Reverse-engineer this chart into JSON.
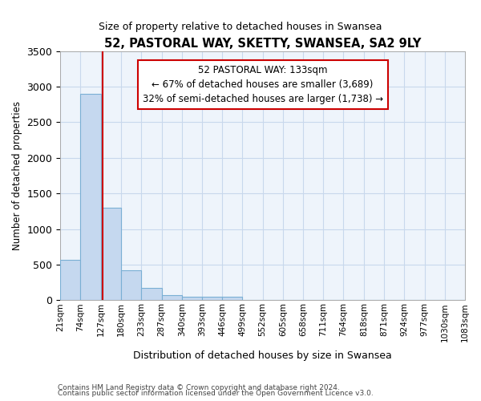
{
  "title": "52, PASTORAL WAY, SKETTY, SWANSEA, SA2 9LY",
  "subtitle": "Size of property relative to detached houses in Swansea",
  "xlabel": "Distribution of detached houses by size in Swansea",
  "ylabel": "Number of detached properties",
  "footer1": "Contains HM Land Registry data © Crown copyright and database right 2024.",
  "footer2": "Contains public sector information licensed under the Open Government Licence v3.0.",
  "bin_edges": [
    21,
    74,
    127,
    180,
    233,
    287,
    340,
    393,
    446,
    499,
    552,
    605,
    658,
    711,
    764,
    818,
    871,
    924,
    977,
    1030,
    1083
  ],
  "bar_heights": [
    570,
    2900,
    1300,
    420,
    170,
    70,
    50,
    50,
    50,
    0,
    0,
    0,
    0,
    0,
    0,
    0,
    0,
    0,
    0,
    0
  ],
  "bar_color": "#c5d8ef",
  "bar_edge_color": "#7aafd4",
  "grid_color": "#c8d8ec",
  "bg_color": "#eef4fb",
  "property_size": 133,
  "red_line_color": "#cc0000",
  "annotation_line1": "52 PASTORAL WAY: 133sqm",
  "annotation_line2": "← 67% of detached houses are smaller (3,689)",
  "annotation_line3": "32% of semi-detached houses are larger (1,738) →",
  "annotation_box_color": "#cc0000",
  "ylim": [
    0,
    3500
  ],
  "yticks": [
    0,
    500,
    1000,
    1500,
    2000,
    2500,
    3000,
    3500
  ]
}
